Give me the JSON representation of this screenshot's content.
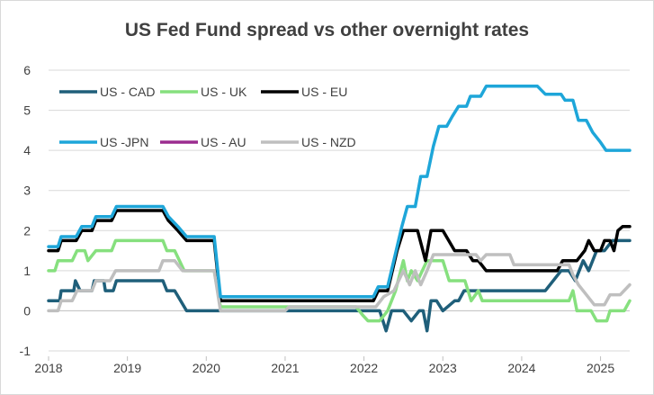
{
  "chart_data": {
    "type": "line",
    "title": "US Fed Fund spread vs other overnight rates",
    "xlabel": "",
    "ylabel": "",
    "ylim": [
      -1,
      6
    ],
    "xlim": [
      2018.0,
      2025.37
    ],
    "y_ticks": [
      "-1",
      "0",
      "1",
      "2",
      "3",
      "4",
      "5",
      "6"
    ],
    "x_ticks": [
      {
        "label": "2018",
        "x": 2018
      },
      {
        "label": "2019",
        "x": 2019
      },
      {
        "label": "2020",
        "x": 2020
      },
      {
        "label": "2021",
        "x": 2021
      },
      {
        "label": "2022",
        "x": 2022
      },
      {
        "label": "2023",
        "x": 2023
      },
      {
        "label": "2024",
        "x": 2024
      },
      {
        "label": "2025",
        "x": 2025
      }
    ],
    "grid": "horizontal",
    "legend_position": "top-left",
    "series": [
      {
        "name": "US - CAD",
        "color": "#1f5f7a",
        "points": [
          [
            2018.0,
            0.25
          ],
          [
            2018.14,
            0.25
          ],
          [
            2018.16,
            0.5
          ],
          [
            2018.32,
            0.5
          ],
          [
            2018.34,
            0.75
          ],
          [
            2018.4,
            0.5
          ],
          [
            2018.55,
            0.5
          ],
          [
            2018.58,
            0.75
          ],
          [
            2018.7,
            0.75
          ],
          [
            2018.72,
            0.5
          ],
          [
            2018.82,
            0.5
          ],
          [
            2018.86,
            0.75
          ],
          [
            2019.45,
            0.75
          ],
          [
            2019.5,
            0.5
          ],
          [
            2019.6,
            0.5
          ],
          [
            2019.75,
            0.0
          ],
          [
            2020.1,
            0.0
          ],
          [
            2021.9,
            0.0
          ],
          [
            2022.0,
            0.0
          ],
          [
            2022.2,
            0.0
          ],
          [
            2022.28,
            -0.5
          ],
          [
            2022.35,
            0.0
          ],
          [
            2022.5,
            0.0
          ],
          [
            2022.6,
            -0.25
          ],
          [
            2022.7,
            0.0
          ],
          [
            2022.75,
            0.0
          ],
          [
            2022.8,
            -0.5
          ],
          [
            2022.85,
            0.25
          ],
          [
            2022.92,
            0.25
          ],
          [
            2023.0,
            0.0
          ],
          [
            2023.15,
            0.25
          ],
          [
            2023.2,
            0.25
          ],
          [
            2023.27,
            0.5
          ],
          [
            2024.3,
            0.5
          ],
          [
            2024.5,
            1.0
          ],
          [
            2024.6,
            1.0
          ],
          [
            2024.68,
            0.75
          ],
          [
            2024.78,
            1.25
          ],
          [
            2024.85,
            1.0
          ],
          [
            2024.95,
            1.5
          ],
          [
            2025.05,
            1.5
          ],
          [
            2025.15,
            1.75
          ],
          [
            2025.37,
            1.75
          ]
        ]
      },
      {
        "name": "US - UK",
        "color": "#86e07e",
        "points": [
          [
            2018.0,
            1.0
          ],
          [
            2018.08,
            1.0
          ],
          [
            2018.12,
            1.25
          ],
          [
            2018.3,
            1.25
          ],
          [
            2018.36,
            1.5
          ],
          [
            2018.46,
            1.5
          ],
          [
            2018.5,
            1.25
          ],
          [
            2018.6,
            1.5
          ],
          [
            2018.8,
            1.5
          ],
          [
            2018.85,
            1.75
          ],
          [
            2019.45,
            1.75
          ],
          [
            2019.5,
            1.5
          ],
          [
            2019.6,
            1.5
          ],
          [
            2019.72,
            1.0
          ],
          [
            2020.1,
            1.0
          ],
          [
            2020.18,
            0.1
          ],
          [
            2021.9,
            0.1
          ],
          [
            2021.98,
            -0.1
          ],
          [
            2022.05,
            -0.25
          ],
          [
            2022.2,
            -0.25
          ],
          [
            2022.3,
            0.0
          ],
          [
            2022.4,
            0.5
          ],
          [
            2022.5,
            1.25
          ],
          [
            2022.55,
            0.75
          ],
          [
            2022.6,
            1.0
          ],
          [
            2022.68,
            0.75
          ],
          [
            2022.8,
            1.25
          ],
          [
            2023.0,
            1.25
          ],
          [
            2023.08,
            0.75
          ],
          [
            2023.28,
            0.75
          ],
          [
            2023.36,
            0.25
          ],
          [
            2023.45,
            0.5
          ],
          [
            2023.5,
            0.25
          ],
          [
            2024.6,
            0.25
          ],
          [
            2024.65,
            0.5
          ],
          [
            2024.7,
            0.0
          ],
          [
            2024.88,
            0.0
          ],
          [
            2024.95,
            -0.25
          ],
          [
            2025.08,
            -0.25
          ],
          [
            2025.12,
            0.0
          ],
          [
            2025.3,
            0.0
          ],
          [
            2025.37,
            0.25
          ]
        ]
      },
      {
        "name": "US - EU",
        "color": "#000000",
        "points": [
          [
            2018.0,
            1.5
          ],
          [
            2018.12,
            1.5
          ],
          [
            2018.16,
            1.75
          ],
          [
            2018.35,
            1.75
          ],
          [
            2018.42,
            2.0
          ],
          [
            2018.55,
            2.0
          ],
          [
            2018.6,
            2.25
          ],
          [
            2018.8,
            2.25
          ],
          [
            2018.86,
            2.5
          ],
          [
            2019.45,
            2.5
          ],
          [
            2019.52,
            2.25
          ],
          [
            2019.64,
            2.0
          ],
          [
            2019.75,
            1.75
          ],
          [
            2020.1,
            1.75
          ],
          [
            2020.18,
            0.25
          ],
          [
            2021.9,
            0.25
          ],
          [
            2022.12,
            0.25
          ],
          [
            2022.18,
            0.5
          ],
          [
            2022.3,
            0.5
          ],
          [
            2022.42,
            1.5
          ],
          [
            2022.5,
            2.0
          ],
          [
            2022.68,
            2.0
          ],
          [
            2022.78,
            1.25
          ],
          [
            2022.85,
            2.0
          ],
          [
            2023.0,
            2.0
          ],
          [
            2023.15,
            1.5
          ],
          [
            2023.3,
            1.5
          ],
          [
            2023.38,
            1.25
          ],
          [
            2023.45,
            1.25
          ],
          [
            2023.55,
            1.0
          ],
          [
            2024.45,
            1.0
          ],
          [
            2024.52,
            1.25
          ],
          [
            2024.7,
            1.25
          ],
          [
            2024.8,
            1.5
          ],
          [
            2024.85,
            1.75
          ],
          [
            2024.92,
            1.5
          ],
          [
            2025.0,
            1.5
          ],
          [
            2025.05,
            1.75
          ],
          [
            2025.12,
            1.75
          ],
          [
            2025.17,
            1.5
          ],
          [
            2025.22,
            2.0
          ],
          [
            2025.28,
            2.1
          ],
          [
            2025.37,
            2.1
          ]
        ]
      },
      {
        "name": "US -JPN",
        "color": "#1ea6d9",
        "points": [
          [
            2018.0,
            1.6
          ],
          [
            2018.12,
            1.6
          ],
          [
            2018.16,
            1.85
          ],
          [
            2018.35,
            1.85
          ],
          [
            2018.42,
            2.1
          ],
          [
            2018.55,
            2.1
          ],
          [
            2018.6,
            2.35
          ],
          [
            2018.8,
            2.35
          ],
          [
            2018.86,
            2.6
          ],
          [
            2019.45,
            2.6
          ],
          [
            2019.52,
            2.35
          ],
          [
            2019.64,
            2.1
          ],
          [
            2019.75,
            1.85
          ],
          [
            2020.1,
            1.85
          ],
          [
            2020.18,
            0.35
          ],
          [
            2021.9,
            0.35
          ],
          [
            2022.12,
            0.35
          ],
          [
            2022.18,
            0.6
          ],
          [
            2022.3,
            0.6
          ],
          [
            2022.48,
            2.1
          ],
          [
            2022.55,
            2.6
          ],
          [
            2022.65,
            2.6
          ],
          [
            2022.72,
            3.35
          ],
          [
            2022.8,
            3.35
          ],
          [
            2022.88,
            4.1
          ],
          [
            2022.95,
            4.6
          ],
          [
            2023.05,
            4.6
          ],
          [
            2023.12,
            4.85
          ],
          [
            2023.2,
            5.1
          ],
          [
            2023.3,
            5.1
          ],
          [
            2023.35,
            5.35
          ],
          [
            2023.48,
            5.35
          ],
          [
            2023.55,
            5.6
          ],
          [
            2024.2,
            5.6
          ],
          [
            2024.3,
            5.4
          ],
          [
            2024.5,
            5.4
          ],
          [
            2024.55,
            5.25
          ],
          [
            2024.65,
            5.25
          ],
          [
            2024.72,
            4.75
          ],
          [
            2024.82,
            4.75
          ],
          [
            2024.9,
            4.45
          ],
          [
            2025.0,
            4.2
          ],
          [
            2025.07,
            4.0
          ],
          [
            2025.37,
            4.0
          ]
        ]
      },
      {
        "name": "US - AU",
        "color": "#9b2d8f",
        "points": []
      },
      {
        "name": "US - NZD",
        "color": "#bfbfbf",
        "points": [
          [
            2018.0,
            0.0
          ],
          [
            2018.12,
            0.0
          ],
          [
            2018.16,
            0.25
          ],
          [
            2018.3,
            0.25
          ],
          [
            2018.36,
            0.5
          ],
          [
            2018.55,
            0.5
          ],
          [
            2018.6,
            0.75
          ],
          [
            2018.78,
            0.75
          ],
          [
            2018.85,
            1.0
          ],
          [
            2019.4,
            1.0
          ],
          [
            2019.45,
            1.25
          ],
          [
            2019.6,
            1.25
          ],
          [
            2019.7,
            1.0
          ],
          [
            2020.1,
            1.0
          ],
          [
            2020.18,
            0.0
          ],
          [
            2021.0,
            0.0
          ],
          [
            2021.05,
            0.1
          ],
          [
            2022.15,
            0.1
          ],
          [
            2022.25,
            0.35
          ],
          [
            2022.38,
            0.5
          ],
          [
            2022.5,
            1.0
          ],
          [
            2022.58,
            0.65
          ],
          [
            2022.65,
            1.0
          ],
          [
            2022.72,
            0.65
          ],
          [
            2022.8,
            1.0
          ],
          [
            2022.88,
            1.4
          ],
          [
            2023.42,
            1.4
          ],
          [
            2023.48,
            1.25
          ],
          [
            2023.55,
            1.4
          ],
          [
            2023.85,
            1.4
          ],
          [
            2023.9,
            1.15
          ],
          [
            2024.6,
            1.15
          ],
          [
            2024.65,
            0.9
          ],
          [
            2024.72,
            0.65
          ],
          [
            2024.82,
            0.4
          ],
          [
            2024.92,
            0.15
          ],
          [
            2025.05,
            0.15
          ],
          [
            2025.12,
            0.4
          ],
          [
            2025.25,
            0.4
          ],
          [
            2025.37,
            0.65
          ]
        ]
      }
    ]
  }
}
